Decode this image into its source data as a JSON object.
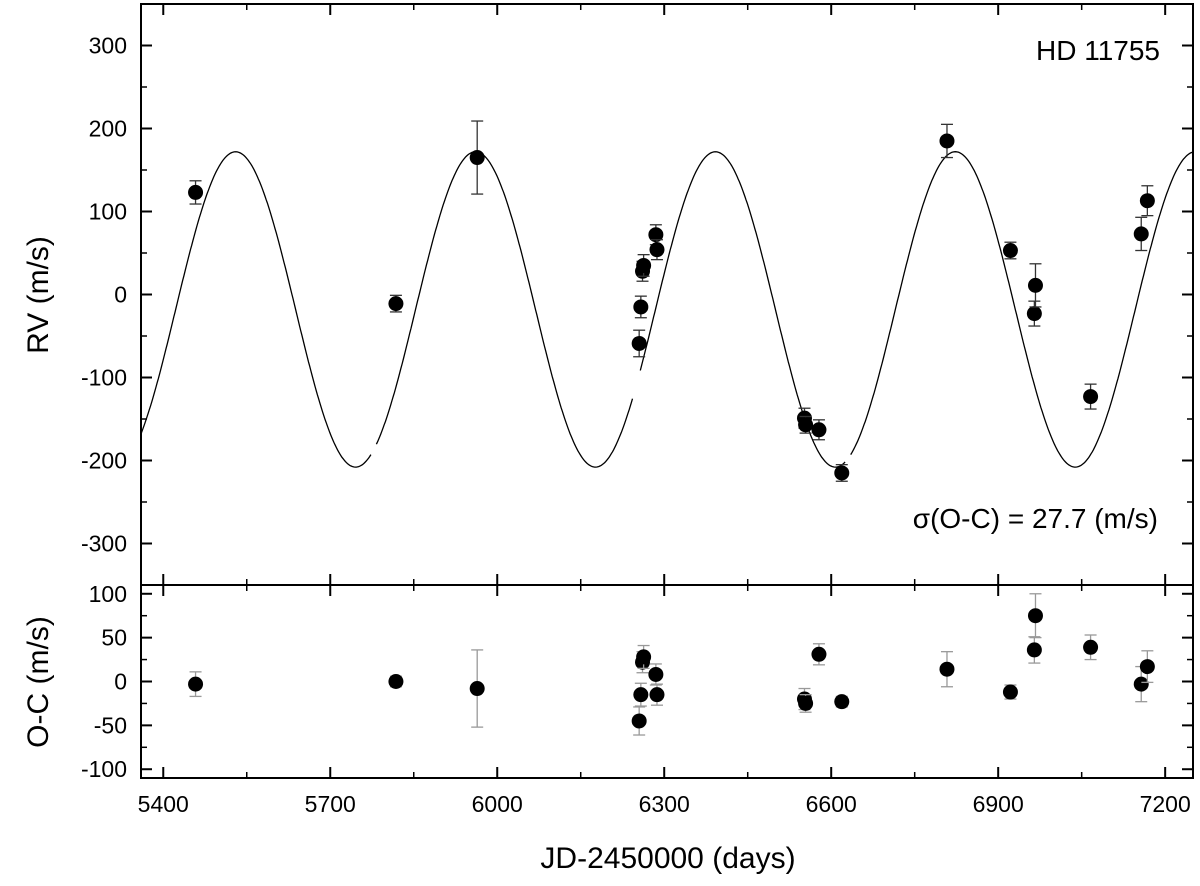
{
  "chart_data": [
    {
      "type": "scatter",
      "panel": "top",
      "ylabel": "RV (m/s)",
      "annotations": [
        "HD 11755",
        "σ(O-C) = 27.7 (m/s)"
      ],
      "xlim": [
        5360,
        7250
      ],
      "ylim": [
        -350,
        350
      ],
      "yticks": [
        300,
        200,
        100,
        0,
        -100,
        -200,
        -300
      ],
      "ytick_labels": [
        "300",
        "200",
        "100",
        "0",
        "-100",
        "-200",
        "-300"
      ],
      "fit_curve": {
        "model": "sinusoid",
        "offset": -18,
        "amplitude": 190,
        "period": 431,
        "t_peak": 5530,
        "gaps": [
          [
            5775,
            5781
          ],
          [
            6245,
            6256
          ],
          [
            6626,
            6634
          ]
        ]
      },
      "points": [
        {
          "x": 5458,
          "y": 123,
          "err": 14
        },
        {
          "x": 5818,
          "y": -11,
          "err": 10
        },
        {
          "x": 5964,
          "y": 165,
          "err": 44
        },
        {
          "x": 6255,
          "y": -59,
          "err": 16
        },
        {
          "x": 6258,
          "y": -15,
          "err": 13
        },
        {
          "x": 6261,
          "y": 28,
          "err": 12
        },
        {
          "x": 6263,
          "y": 35,
          "err": 13
        },
        {
          "x": 6285,
          "y": 72,
          "err": 12
        },
        {
          "x": 6287,
          "y": 54,
          "err": 12
        },
        {
          "x": 6552,
          "y": -149,
          "err": 12
        },
        {
          "x": 6554,
          "y": -157,
          "err": 10
        },
        {
          "x": 6578,
          "y": -163,
          "err": 12
        },
        {
          "x": 6619,
          "y": -215,
          "err": 10
        },
        {
          "x": 6808,
          "y": 185,
          "err": 20
        },
        {
          "x": 6922,
          "y": 53,
          "err": 10
        },
        {
          "x": 6965,
          "y": -23,
          "err": 15
        },
        {
          "x": 6967,
          "y": 11,
          "err": 26
        },
        {
          "x": 7066,
          "y": -123,
          "err": 15
        },
        {
          "x": 7157,
          "y": 73,
          "err": 20
        },
        {
          "x": 7168,
          "y": 113,
          "err": 18
        }
      ]
    },
    {
      "type": "scatter",
      "panel": "bottom",
      "xlabel": "JD-2450000 (days)",
      "ylabel": "O-C (m/s)",
      "xlim": [
        5360,
        7250
      ],
      "ylim": [
        -110,
        110
      ],
      "xticks": [
        5400,
        5700,
        6000,
        6300,
        6600,
        6900,
        7200
      ],
      "xtick_labels": [
        "5400",
        "5700",
        "6000",
        "6300",
        "6600",
        "6900",
        "7200"
      ],
      "yticks": [
        100,
        50,
        0,
        -50,
        -100
      ],
      "ytick_labels": [
        "100",
        "50",
        "0",
        "-50",
        "-100"
      ],
      "points": [
        {
          "x": 5458,
          "y": -3,
          "err": 14
        },
        {
          "x": 5818,
          "y": 0,
          "err": 6
        },
        {
          "x": 5964,
          "y": -8,
          "err": 44
        },
        {
          "x": 6255,
          "y": -45,
          "err": 16
        },
        {
          "x": 6258,
          "y": -15,
          "err": 13
        },
        {
          "x": 6261,
          "y": 22,
          "err": 12
        },
        {
          "x": 6263,
          "y": 28,
          "err": 13
        },
        {
          "x": 6285,
          "y": 8,
          "err": 12
        },
        {
          "x": 6287,
          "y": -15,
          "err": 12
        },
        {
          "x": 6552,
          "y": -20,
          "err": 12
        },
        {
          "x": 6554,
          "y": -25,
          "err": 10
        },
        {
          "x": 6578,
          "y": 31,
          "err": 12
        },
        {
          "x": 6619,
          "y": -23,
          "err": 6
        },
        {
          "x": 6808,
          "y": 14,
          "err": 20
        },
        {
          "x": 6922,
          "y": -12,
          "err": 8
        },
        {
          "x": 6965,
          "y": 36,
          "err": 15
        },
        {
          "x": 6967,
          "y": 75,
          "err": 25
        },
        {
          "x": 7066,
          "y": 39,
          "err": 14
        },
        {
          "x": 7157,
          "y": -3,
          "err": 20
        },
        {
          "x": 7168,
          "y": 17,
          "err": 18
        }
      ]
    }
  ]
}
